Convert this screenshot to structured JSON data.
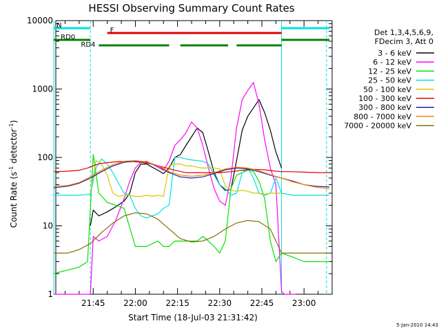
{
  "chart_data": {
    "type": "line",
    "title": "HESSI Observing Summary Count Rates",
    "xlabel": "Start Time (18-Jul-03 21:31:42)",
    "ylabel_main": "Count Rate (s",
    "ylabel_sup1": "-1",
    "ylabel_mid": " detector",
    "ylabel_sup2": "-1",
    "ylabel_end": ")",
    "yscale": "log",
    "ylim": [
      1,
      10000
    ],
    "xlim": [
      "21:31:42",
      "23:10:00"
    ],
    "x_ticks": [
      "21:45",
      "22:00",
      "22:15",
      "22:30",
      "22:45",
      "23:00"
    ],
    "y_ticks": [
      "1",
      "10",
      "100",
      "1000",
      "10000"
    ],
    "date_stamp": "5-Jan-2010 14:43",
    "legend": {
      "header": [
        "Det 1,3,4,5,6,9,",
        "FDecim 3, Att 0"
      ],
      "entries": [
        {
          "label": "3 - 6 keV",
          "color": "#000000"
        },
        {
          "label": "6 - 12 keV",
          "color": "#ff00ff"
        },
        {
          "label": "12 - 25 keV",
          "color": "#00e000"
        },
        {
          "label": "25 - 50 keV",
          "color": "#00e0e0"
        },
        {
          "label": "50 - 100 keV",
          "color": "#d4c800"
        },
        {
          "label": "100 - 300 keV",
          "color": "#e00000"
        },
        {
          "label": "300 - 800 keV",
          "color": "#2020a0"
        },
        {
          "label": "800 - 7000 keV",
          "color": "#ff8000"
        },
        {
          "label": "7000 - 20000 keV",
          "color": "#807000"
        }
      ]
    },
    "flags": [
      {
        "label": "N",
        "color": "#00e0e0",
        "segments": [
          [
            "21:31",
            "21:44"
          ],
          [
            "22:52",
            "23:09"
          ]
        ]
      },
      {
        "label": "F",
        "color": "#e00000",
        "segments": [
          [
            "21:50",
            "22:52"
          ]
        ]
      },
      {
        "label": "RD0",
        "color": "#008000",
        "segments": [
          [
            "21:31",
            "21:44"
          ],
          [
            "22:52",
            "23:09"
          ]
        ]
      },
      {
        "label": "RD4",
        "color": "#008000",
        "segments": [
          [
            "21:47",
            "22:12"
          ],
          [
            "22:16",
            "22:33"
          ],
          [
            "22:36",
            "22:52"
          ]
        ]
      }
    ],
    "vlines": [
      {
        "time": "21:31",
        "style": "solid"
      },
      {
        "time": "21:44",
        "style": "dashed"
      },
      {
        "time": "22:52",
        "style": "solid"
      },
      {
        "time": "23:08",
        "style": "dashed"
      }
    ],
    "series": [
      {
        "name": "3 - 6 keV",
        "color": "#000000",
        "x": [
          "21:44",
          "21:45",
          "21:47",
          "21:50",
          "21:53",
          "21:56",
          "21:58",
          "22:00",
          "22:02",
          "22:04",
          "22:06",
          "22:08",
          "22:10",
          "22:12",
          "22:14",
          "22:16",
          "22:18",
          "22:20",
          "22:22",
          "22:24",
          "22:26",
          "22:28",
          "22:30",
          "22:32",
          "22:34",
          "22:36",
          "22:38",
          "22:40",
          "22:42",
          "22:44",
          "22:46",
          "22:48",
          "22:50",
          "22:52"
        ],
        "y": [
          10,
          17,
          14,
          16,
          19,
          23,
          30,
          60,
          80,
          80,
          72,
          65,
          58,
          70,
          100,
          110,
          150,
          200,
          270,
          230,
          120,
          60,
          40,
          33,
          34,
          90,
          250,
          400,
          530,
          700,
          450,
          250,
          120,
          70
        ]
      },
      {
        "name": "6 - 12 keV",
        "color": "#ff00ff",
        "x": [
          "21:31",
          "21:44",
          "21:45",
          "21:47",
          "21:50",
          "21:53",
          "21:56",
          "21:58",
          "22:00",
          "22:02",
          "22:04",
          "22:06",
          "22:08",
          "22:10",
          "22:12",
          "22:14",
          "22:16",
          "22:18",
          "22:20",
          "22:22",
          "22:24",
          "22:26",
          "22:28",
          "22:30",
          "22:32",
          "22:34",
          "22:36",
          "22:38",
          "22:40",
          "22:42",
          "22:44",
          "22:46",
          "22:48",
          "22:50",
          "22:52",
          "22:53",
          "22:57"
        ],
        "y": [
          1,
          1,
          7,
          6,
          7,
          12,
          25,
          45,
          70,
          85,
          88,
          80,
          72,
          65,
          88,
          150,
          180,
          230,
          330,
          270,
          150,
          70,
          35,
          23,
          20,
          50,
          270,
          700,
          950,
          1250,
          600,
          180,
          70,
          40,
          1.1,
          1,
          1
        ]
      },
      {
        "name": "12 - 25 keV",
        "color": "#00e000",
        "x": [
          "21:31",
          "21:40",
          "21:43",
          "21:45",
          "21:47",
          "21:50",
          "21:53",
          "21:56",
          "22:00",
          "22:04",
          "22:08",
          "22:10",
          "22:12",
          "22:14",
          "22:16",
          "22:18",
          "22:20",
          "22:22",
          "22:24",
          "22:26",
          "22:28",
          "22:30",
          "22:32",
          "22:34",
          "22:36",
          "22:38",
          "22:40",
          "22:42",
          "22:44",
          "22:46",
          "22:48",
          "22:50",
          "22:52",
          "22:56",
          "23:00",
          "23:05",
          "23:09"
        ],
        "y": [
          2,
          2.5,
          3,
          110,
          30,
          22,
          20,
          18,
          5,
          5,
          6,
          5,
          5,
          6,
          6,
          6,
          6,
          6,
          7,
          6,
          5,
          4,
          6,
          35,
          55,
          60,
          65,
          62,
          45,
          25,
          6,
          3,
          4,
          3.5,
          3,
          3,
          3
        ]
      },
      {
        "name": "25 - 50 keV",
        "color": "#00e0e0",
        "x": [
          "21:31",
          "21:40",
          "21:44",
          "21:46",
          "21:48",
          "21:50",
          "21:52",
          "21:54",
          "21:56",
          "21:58",
          "22:00",
          "22:02",
          "22:04",
          "22:06",
          "22:08",
          "22:10",
          "22:12",
          "22:14",
          "22:16",
          "22:18",
          "22:20",
          "22:22",
          "22:24",
          "22:26",
          "22:28",
          "22:30",
          "22:32",
          "22:34",
          "22:36",
          "22:38",
          "22:40",
          "22:42",
          "22:44",
          "22:46",
          "22:48",
          "22:50",
          "22:52",
          "22:56",
          "23:00",
          "23:05",
          "23:09"
        ],
        "y": [
          28,
          28,
          29,
          70,
          95,
          80,
          60,
          42,
          30,
          28,
          18,
          14,
          13,
          14,
          15,
          18,
          20,
          100,
          100,
          95,
          92,
          90,
          88,
          80,
          55,
          40,
          35,
          28,
          30,
          60,
          70,
          50,
          30,
          28,
          30,
          50,
          30,
          28,
          28,
          28,
          28
        ]
      },
      {
        "name": "50 - 100 keV",
        "color": "#d4c800",
        "x": [
          "21:44",
          "21:46",
          "21:48",
          "21:50",
          "21:52",
          "21:54",
          "21:56",
          "21:58",
          "22:00",
          "22:02",
          "22:04",
          "22:06",
          "22:08",
          "22:10",
          "22:12",
          "22:14",
          "22:16",
          "22:18",
          "22:20",
          "22:22",
          "22:24",
          "22:26",
          "22:28",
          "22:30",
          "22:32",
          "22:34",
          "22:36",
          "22:38",
          "22:40",
          "22:42",
          "22:44",
          "22:46",
          "22:48",
          "22:50",
          "22:52"
        ],
        "y": [
          30,
          90,
          80,
          55,
          30,
          27,
          28,
          28,
          27,
          27,
          28,
          27,
          28,
          27,
          75,
          80,
          80,
          75,
          75,
          72,
          70,
          70,
          70,
          68,
          38,
          33,
          32,
          33,
          32,
          30,
          30,
          29,
          30,
          30,
          30
        ]
      },
      {
        "name": "100 - 300 keV",
        "color": "#e00000",
        "x": [
          "21:31",
          "21:36",
          "21:40",
          "21:43",
          "21:46",
          "21:48",
          "21:50",
          "21:54",
          "21:58",
          "22:02",
          "22:06",
          "22:10",
          "22:14",
          "22:18",
          "22:22",
          "22:26",
          "22:30",
          "22:34",
          "22:38",
          "22:42",
          "22:46",
          "22:50",
          "22:52",
          "22:55",
          "23:00",
          "23:05",
          "23:09"
        ],
        "y": [
          62,
          63,
          65,
          70,
          78,
          82,
          84,
          87,
          88,
          85,
          80,
          72,
          65,
          60,
          60,
          60,
          60,
          62,
          65,
          67,
          66,
          63,
          62,
          62,
          61,
          60,
          60
        ]
      },
      {
        "name": "300 - 800 keV",
        "color": "#2020a0",
        "x": [
          "21:31",
          "21:36",
          "21:40",
          "21:44",
          "21:48",
          "21:52",
          "21:56",
          "22:00",
          "22:04",
          "22:08",
          "22:12",
          "22:16",
          "22:20",
          "22:24",
          "22:28",
          "22:32",
          "22:36",
          "22:40",
          "22:44",
          "22:48",
          "22:52",
          "22:56",
          "23:00",
          "23:04",
          "23:09"
        ],
        "y": [
          36,
          38,
          42,
          50,
          62,
          75,
          85,
          88,
          85,
          75,
          60,
          52,
          50,
          52,
          58,
          66,
          70,
          68,
          62,
          55,
          50,
          45,
          40,
          38,
          37
        ]
      },
      {
        "name": "800 - 7000 keV",
        "color": "#ff8000",
        "x": [
          "21:31",
          "21:36",
          "21:40",
          "21:44",
          "21:48",
          "21:52",
          "21:56",
          "22:00",
          "22:04",
          "22:08",
          "22:12",
          "22:16",
          "22:20",
          "22:24",
          "22:28",
          "22:32",
          "22:36",
          "22:40",
          "22:44",
          "22:48",
          "22:52",
          "22:56",
          "23:00",
          "23:04",
          "23:09"
        ],
        "y": [
          38,
          39,
          43,
          52,
          65,
          78,
          88,
          90,
          86,
          76,
          62,
          55,
          53,
          55,
          60,
          68,
          72,
          70,
          64,
          56,
          50,
          44,
          40,
          37,
          35
        ]
      },
      {
        "name": "7000 - 20000 keV",
        "color": "#807000",
        "x": [
          "21:31",
          "21:36",
          "21:40",
          "21:44",
          "21:48",
          "21:52",
          "21:56",
          "22:00",
          "22:04",
          "22:08",
          "22:12",
          "22:16",
          "22:20",
          "22:24",
          "22:28",
          "22:32",
          "22:36",
          "22:40",
          "22:44",
          "22:48",
          "22:50",
          "22:52",
          "22:56",
          "23:00",
          "23:04",
          "23:09"
        ],
        "y": [
          4,
          4,
          4.5,
          5.5,
          8,
          11,
          14,
          15.5,
          15,
          12.5,
          9,
          6.5,
          5.8,
          6,
          7,
          9,
          11,
          12,
          11.5,
          9,
          6,
          4,
          4,
          4,
          4,
          4
        ]
      }
    ]
  }
}
